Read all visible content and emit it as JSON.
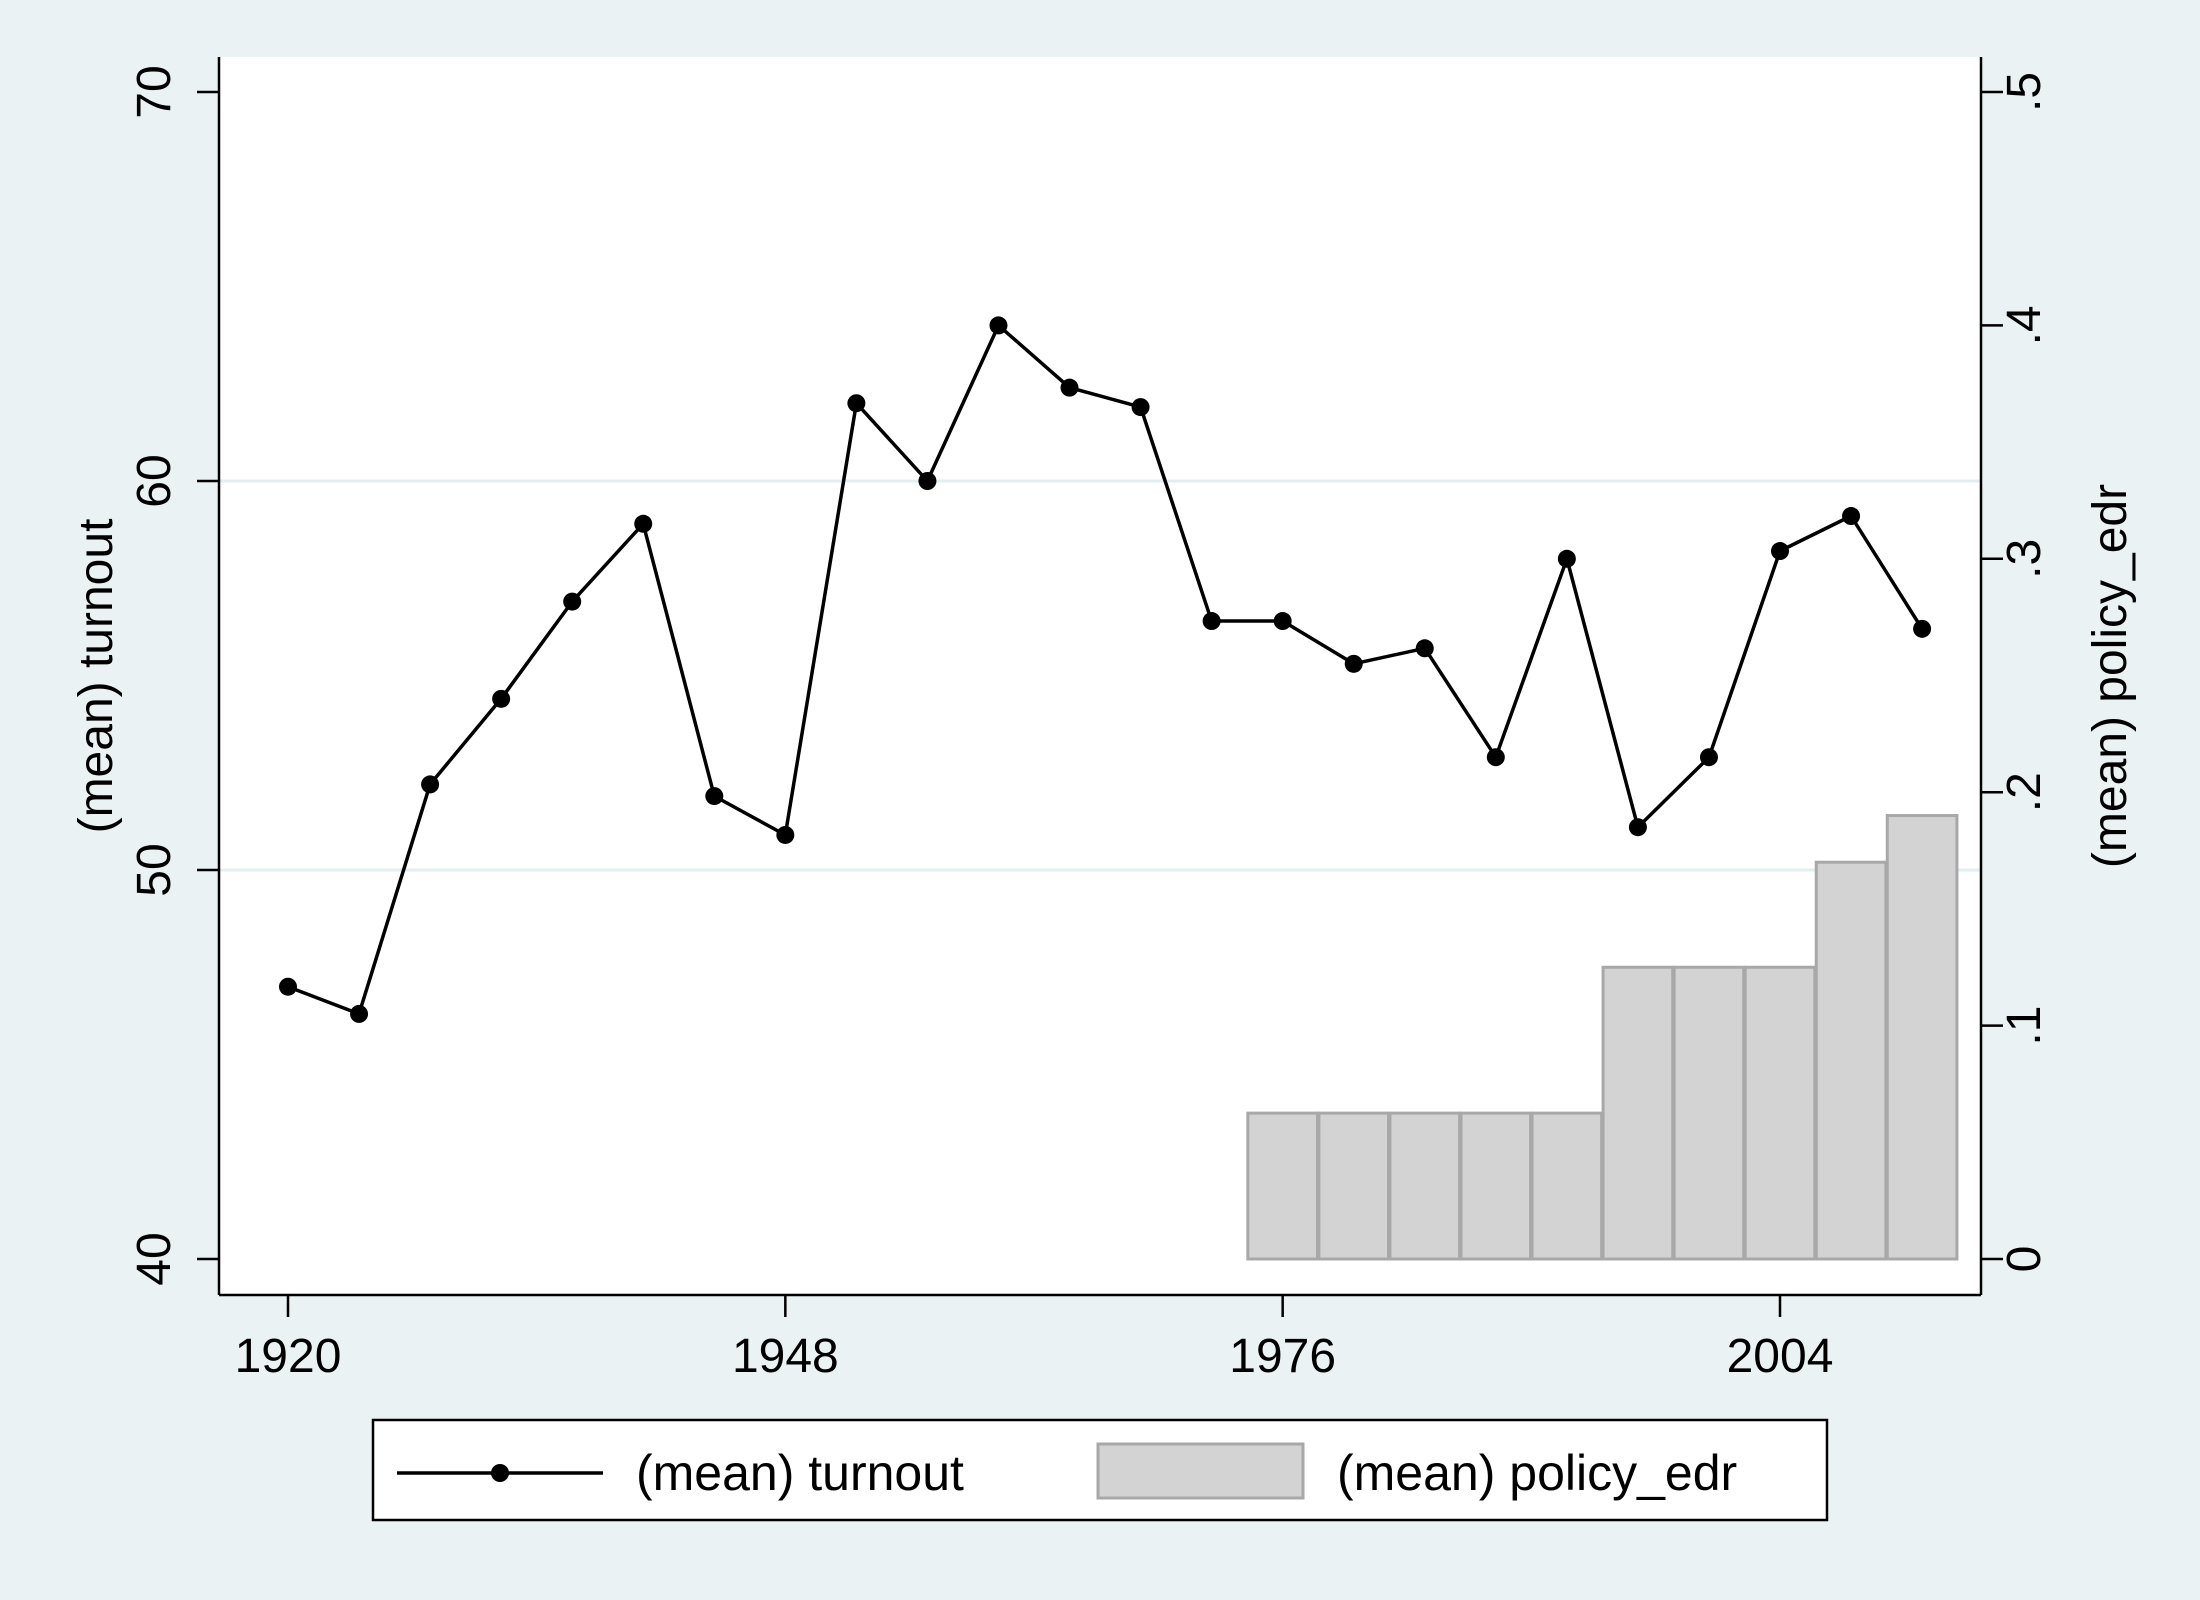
{
  "chart_data": {
    "type": "bar+line",
    "x_ticks": [
      1920,
      1948,
      1976,
      2004
    ],
    "xlim": [
      1916,
      2016
    ],
    "series": [
      {
        "name": "(mean) turnout",
        "kind": "line",
        "axis": "left",
        "color": "#000000",
        "x": [
          1920,
          1924,
          1928,
          1932,
          1936,
          1940,
          1944,
          1948,
          1952,
          1956,
          1960,
          1964,
          1968,
          1972,
          1976,
          1980,
          1984,
          1988,
          1992,
          1996,
          2000,
          2004,
          2008,
          2012
        ],
        "values": [
          47.0,
          46.3,
          52.2,
          54.4,
          56.9,
          58.9,
          51.9,
          50.9,
          62.0,
          60.0,
          64.0,
          62.4,
          61.9,
          56.4,
          56.4,
          55.3,
          55.7,
          52.9,
          58.0,
          51.1,
          52.9,
          58.2,
          59.1,
          56.2
        ]
      },
      {
        "name": "(mean) policy_edr",
        "kind": "bar",
        "axis": "right",
        "color": "#d3d3d3",
        "x": [
          1976,
          1980,
          1984,
          1988,
          1992,
          1996,
          2000,
          2004,
          2008,
          2012
        ],
        "values": [
          0.0625,
          0.0625,
          0.0625,
          0.0625,
          0.0625,
          0.125,
          0.125,
          0.125,
          0.17,
          0.19
        ]
      }
    ],
    "y_left": {
      "label": "(mean) turnout",
      "ylim": [
        40,
        70
      ],
      "ticks": [
        40,
        50,
        60,
        70
      ],
      "tick_labels": [
        "40",
        "50",
        "60",
        "70"
      ]
    },
    "y_right": {
      "label": "(mean) policy_edr",
      "ylim": [
        0,
        0.5
      ],
      "ticks": [
        0,
        0.1,
        0.2,
        0.3,
        0.4,
        0.5
      ],
      "tick_labels": [
        "0",
        ".1",
        ".2",
        ".3",
        ".4",
        ".5"
      ]
    },
    "grid": true,
    "legend": {
      "position": "bottom",
      "items": [
        "(mean) turnout",
        "(mean) policy_edr"
      ]
    }
  }
}
